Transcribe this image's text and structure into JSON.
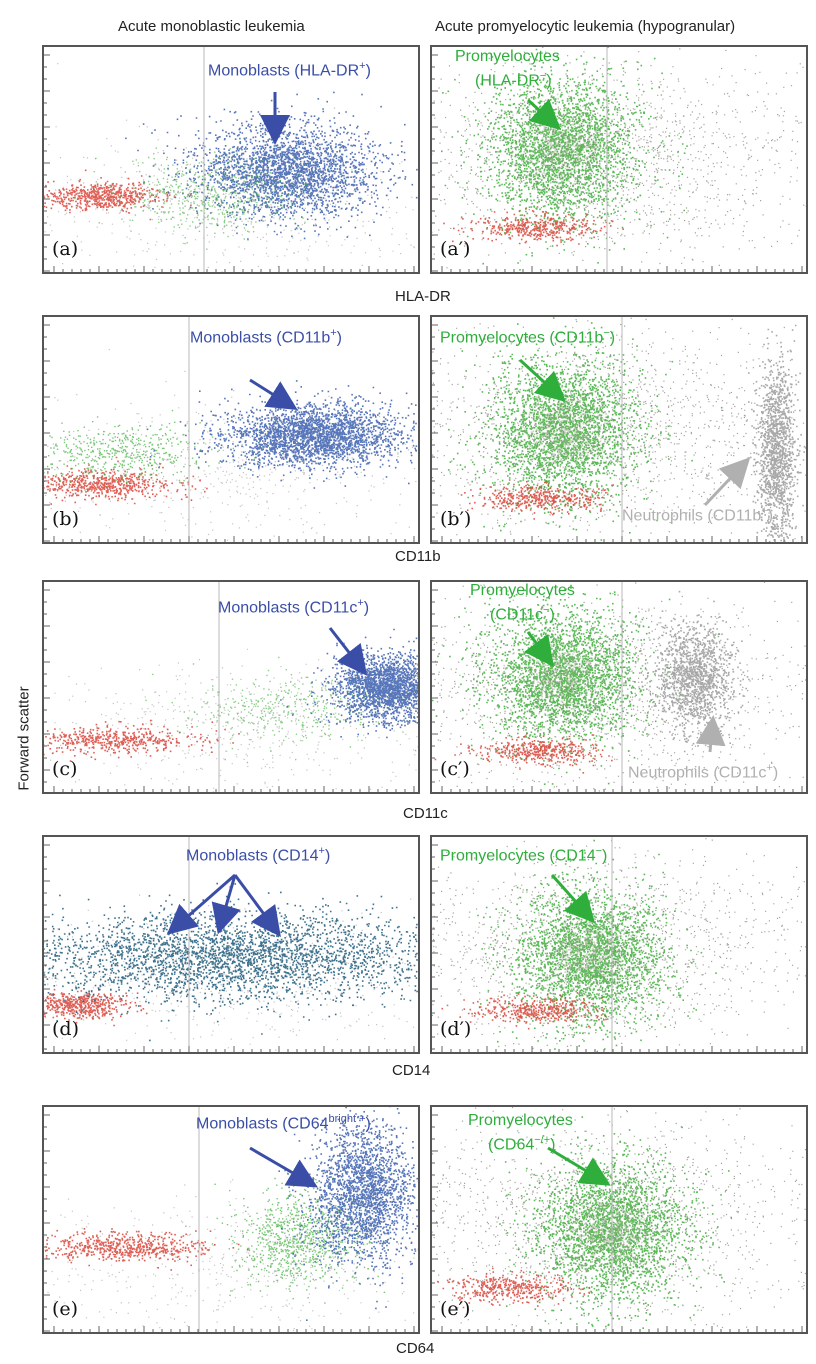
{
  "column_titles": {
    "left": "Acute monoblastic leukemia",
    "right": "Acute promyelocytic leukemia (hypogranular)"
  },
  "y_axis_label": "Forward scatter",
  "colors": {
    "monoblast_blue": "#3b5fae",
    "promyelocyte_green": "#3fae3c",
    "neutrophil_gray": "#9a9a9a",
    "lymph_red": "#d9443a",
    "dark_teal": "#1f5a7a",
    "frame": "#555555"
  },
  "rows": [
    {
      "marker": "HLA-DR",
      "left": {
        "label": "(a)",
        "annotation": "Monoblasts (HLA-DR",
        "annotation_sup": "+",
        "annotation_tail": ")"
      },
      "right": {
        "label": "(a′)",
        "annotation_line1": "Promyelocytes",
        "annotation_line2": "(HLA-DR",
        "annotation_sup": "−",
        "annotation_tail": ")"
      }
    },
    {
      "marker": "CD11b",
      "left": {
        "label": "(b)",
        "annotation": "Monoblasts (CD11b",
        "annotation_sup": "+",
        "annotation_tail": ")"
      },
      "right": {
        "label": "(b′)",
        "annotation": "Promyelocytes (CD11b",
        "annotation_sup": "−",
        "annotation_tail": ")",
        "annotation2": "Neutrophils (CD11b",
        "annotation2_sup": "+",
        "annotation2_tail": ")"
      }
    },
    {
      "marker": "CD11c",
      "left": {
        "label": "(c)",
        "annotation": "Monoblasts (CD11c",
        "annotation_sup": "+",
        "annotation_tail": ")"
      },
      "right": {
        "label": "(c′)",
        "annotation_line1": "Promyelocytes",
        "annotation_line2": "(CD11c",
        "annotation_sup": "−",
        "annotation_tail": ")",
        "annotation2": "Neutrophils (CD11c",
        "annotation2_sup": "+",
        "annotation2_tail": ")"
      }
    },
    {
      "marker": "CD14",
      "left": {
        "label": "(d)",
        "annotation": "Monoblasts (CD14",
        "annotation_sup": "+",
        "annotation_tail": ")"
      },
      "right": {
        "label": "(d′)",
        "annotation": "Promyelocytes (CD14",
        "annotation_sup": "−",
        "annotation_tail": ")"
      }
    },
    {
      "marker": "CD64",
      "left": {
        "label": "(e)",
        "annotation": "Monoblasts (CD64",
        "annotation_sup": "bright +",
        "annotation_tail": ")"
      },
      "right": {
        "label": "(e′)",
        "annotation_line1": "Promyelocytes",
        "annotation_line2": "(CD64",
        "annotation_sup": "−/+",
        "annotation_tail": ")"
      }
    }
  ],
  "chart_data": {
    "type": "scatter",
    "x_scale": "log",
    "ylabel": "Forward scatter",
    "xlabels": [
      "HLA-DR",
      "CD11b",
      "CD11c",
      "CD14",
      "CD64"
    ],
    "populations": [
      {
        "name": "Monoblasts",
        "color": "#3b5fae"
      },
      {
        "name": "Promyelocytes",
        "color": "#3fae3c"
      },
      {
        "name": "Neutrophils",
        "color": "#9a9a9a"
      }
    ]
  }
}
